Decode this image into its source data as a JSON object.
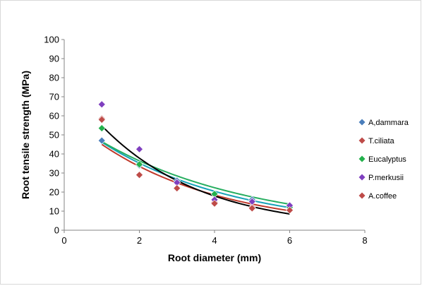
{
  "chart_data": {
    "type": "scatter",
    "title": "",
    "xlabel": "Root diameter (mm)",
    "ylabel": "Root tensile strength (MPa)",
    "xlim": [
      0,
      8
    ],
    "ylim": [
      0,
      100
    ],
    "xticks": [
      "0",
      "2",
      "4",
      "6",
      "8"
    ],
    "yticks": [
      "0",
      "10",
      "20",
      "30",
      "40",
      "50",
      "60",
      "70",
      "80",
      "90",
      "100"
    ],
    "grid": false,
    "legend_position": "right",
    "series": [
      {
        "name": "A,dammara",
        "marker": "diamond",
        "color": "#4a7ebb",
        "x": [
          1,
          2,
          3,
          4,
          5,
          6
        ],
        "y": [
          47,
          34,
          26,
          19,
          16,
          13
        ],
        "trend": {
          "type": "exponential",
          "a": 60.6,
          "b": -0.272,
          "color": "#17a2b8"
        }
      },
      {
        "name": "T.ciliata",
        "marker": "diamond",
        "color": "#be4b48",
        "x": [
          1,
          2,
          3,
          4,
          5,
          6
        ],
        "y": [
          58.5,
          29,
          22,
          14.5,
          12,
          10.5
        ],
        "trend": {
          "type": "exponential",
          "a": 60.6,
          "b": -0.297,
          "color": "#c0392b"
        }
      },
      {
        "name": "Eucalyptus",
        "marker": "diamond",
        "color": "#22b14c",
        "x": [
          1,
          2,
          3,
          4,
          5,
          6
        ],
        "y": [
          53.5,
          34.5,
          25,
          19,
          15,
          12
        ],
        "trend": {
          "type": "exponential",
          "a": 59.4,
          "b": -0.245,
          "color": "#27ae60"
        }
      },
      {
        "name": "P.merkusii",
        "marker": "diamond",
        "color": "#7f3fbf",
        "x": [
          1,
          2,
          3,
          4,
          5,
          6
        ],
        "y": [
          66,
          42.5,
          25,
          16,
          15,
          13
        ],
        "trend": {
          "type": "exponential",
          "a": 79.5,
          "b": -0.372,
          "color": "#000000"
        }
      },
      {
        "name": "A.coffee",
        "marker": "diamond",
        "color": "#be4b48",
        "x": [
          1,
          2,
          3,
          4,
          5,
          6
        ],
        "y": [
          58,
          29,
          22,
          14,
          11.5,
          10.5
        ],
        "trend": null
      }
    ]
  }
}
